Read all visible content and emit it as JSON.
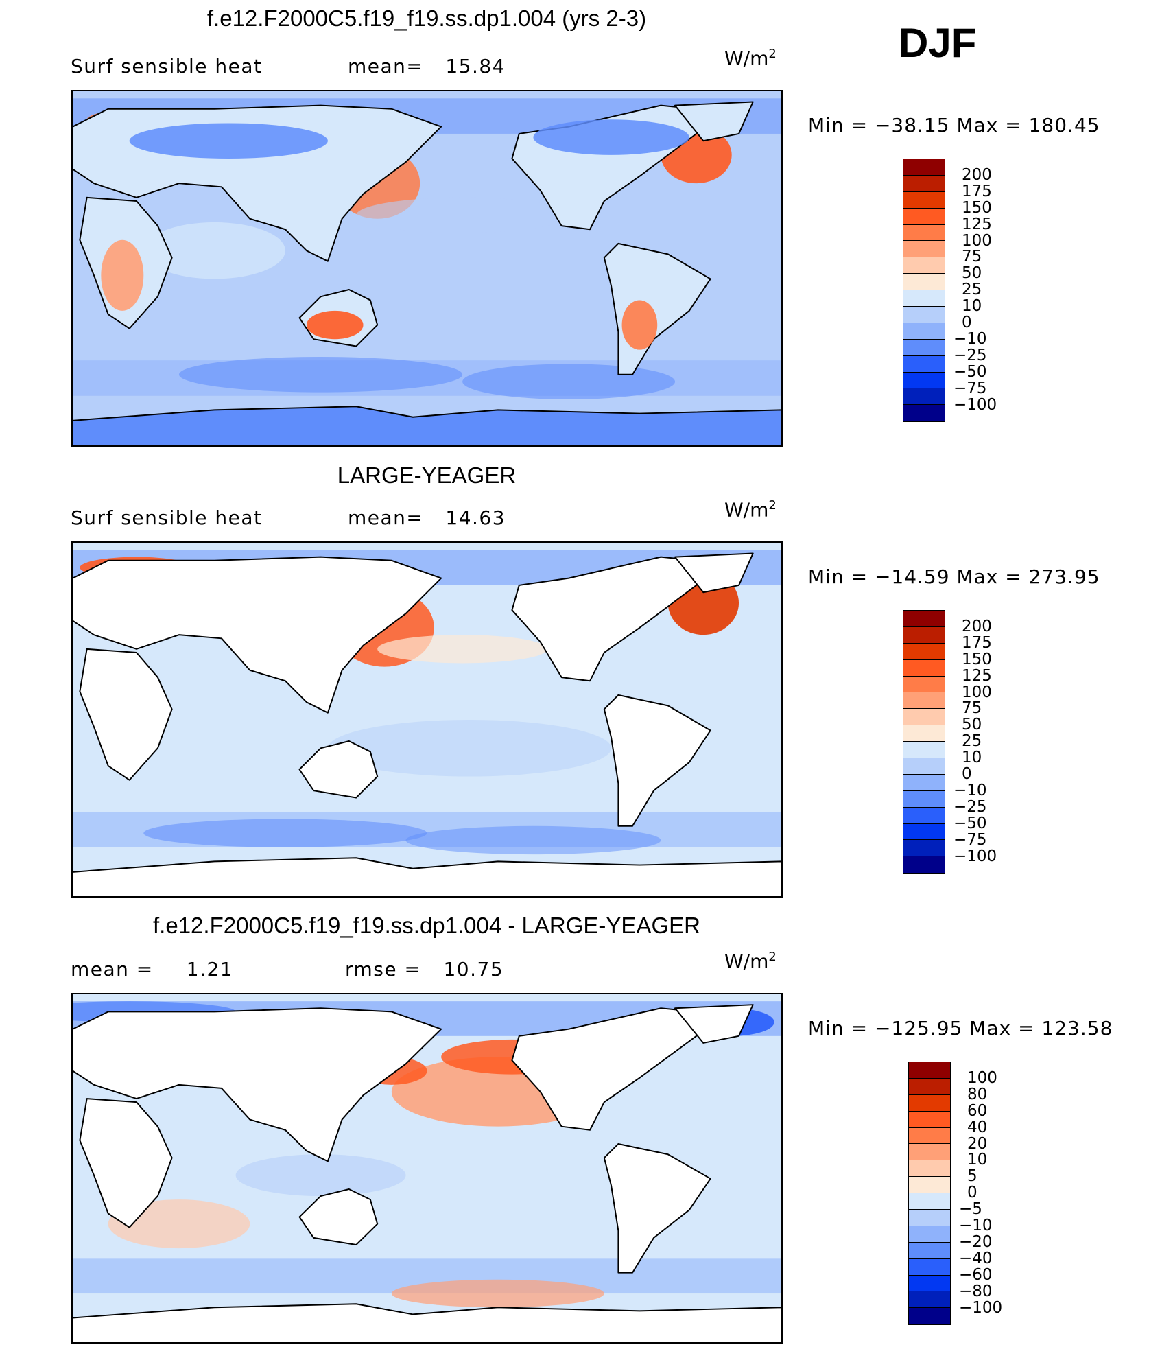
{
  "season": "DJF",
  "colors": {
    "full_scale": [
      "#8f0000",
      "#bb1e00",
      "#e33a00",
      "#ff5a22",
      "#ff7c48",
      "#ffa077",
      "#ffcbae",
      "#fde9d6",
      "#d6e8fb",
      "#b6cffa",
      "#8fb2fb",
      "#5f8dfb",
      "#2a5ffb",
      "#0238f2",
      "#0020bb",
      "#00008a"
    ],
    "diff_scale": [
      "#8f0000",
      "#bb1e00",
      "#e33a00",
      "#ff5a22",
      "#ff7c48",
      "#ffa077",
      "#ffcbae",
      "#fde9d6",
      "#d6e8fb",
      "#b6cffa",
      "#8fb2fb",
      "#5f8dfb",
      "#2a5ffb",
      "#0238f2",
      "#0020bb",
      "#00008a"
    ],
    "land_white": "#ffffff"
  },
  "panels": [
    {
      "title": "f.e12.F2000C5.f19_f19.ss.dp1.004 (yrs 2-3)",
      "left_label": "Surf  sensible  heat",
      "mid_label": "mean=",
      "mid_value": "15.84",
      "units": "W/m",
      "units_exp": "2",
      "minmax": "Min  =  −38.15  Max  =  180.45",
      "colorbar_labels": [
        "200",
        "175",
        "150",
        "125",
        "100",
        "75",
        "50",
        "25",
        "10",
        "0",
        "−10",
        "−25",
        "−50",
        "−75",
        "−100"
      ],
      "land_mask": false,
      "map_icon": "world-map-field"
    },
    {
      "title": "LARGE-YEAGER",
      "left_label": "Surf  sensible  heat",
      "mid_label": "mean=",
      "mid_value": "14.63",
      "units": "W/m",
      "units_exp": "2",
      "minmax": "Min  =  −14.59  Max  =  273.95",
      "colorbar_labels": [
        "200",
        "175",
        "150",
        "125",
        "100",
        "75",
        "50",
        "25",
        "10",
        "0",
        "−10",
        "−25",
        "−50",
        "−75",
        "−100"
      ],
      "land_mask": true,
      "map_icon": "world-map-field"
    },
    {
      "title": "f.e12.F2000C5.f19_f19.ss.dp1.004 - LARGE-YEAGER",
      "left_label": "mean  =",
      "left_value": "1.21",
      "mid_label": "rmse  =",
      "mid_value": "10.75",
      "units": "W/m",
      "units_exp": "2",
      "minmax": "Min  =  −125.95  Max  =  123.58",
      "colorbar_labels": [
        "100",
        "80",
        "60",
        "40",
        "20",
        "10",
        "5",
        "0",
        "−5",
        "−10",
        "−20",
        "−40",
        "−60",
        "−80",
        "−100"
      ],
      "land_mask": true,
      "map_icon": "world-map-difference-field"
    }
  ]
}
